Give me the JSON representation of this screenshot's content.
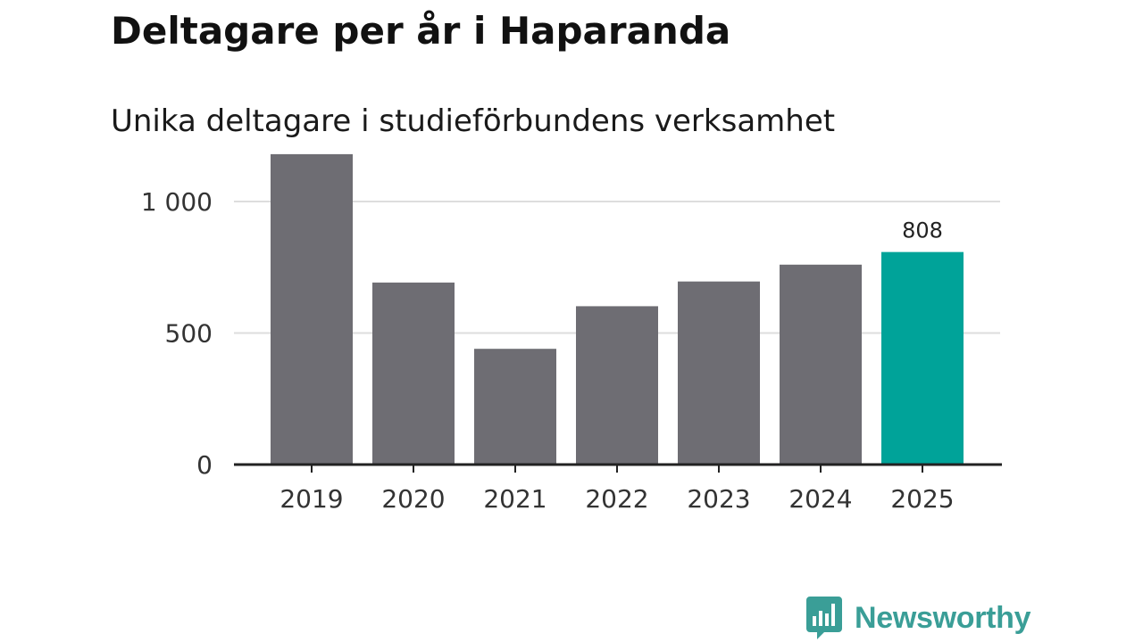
{
  "colors": {
    "bar": "#6e6d73",
    "highlight": "#00a399",
    "grid": "#dddddd",
    "axis": "#222222",
    "brand": "#3a9e97"
  },
  "brand": {
    "name": "Newsworthy",
    "icon": "bar-chart-speech-bubble-icon"
  },
  "chart_data": {
    "type": "bar",
    "title": "Deltagare per år i Haparanda",
    "subtitle": "Unika deltagare i studieförbundens verksamhet",
    "xlabel": "",
    "ylabel": "",
    "categories": [
      "2019",
      "2020",
      "2021",
      "2022",
      "2023",
      "2024",
      "2025"
    ],
    "values": [
      1180,
      692,
      440,
      602,
      696,
      760,
      808
    ],
    "highlight_index": 6,
    "data_labels": [
      {
        "index": 6,
        "text": "808"
      }
    ],
    "ylim": [
      0,
      1200
    ],
    "yticks": [
      0,
      500,
      1000
    ],
    "ytick_labels": [
      "0",
      "500",
      "1 000"
    ],
    "grid": true,
    "legend": "none"
  }
}
